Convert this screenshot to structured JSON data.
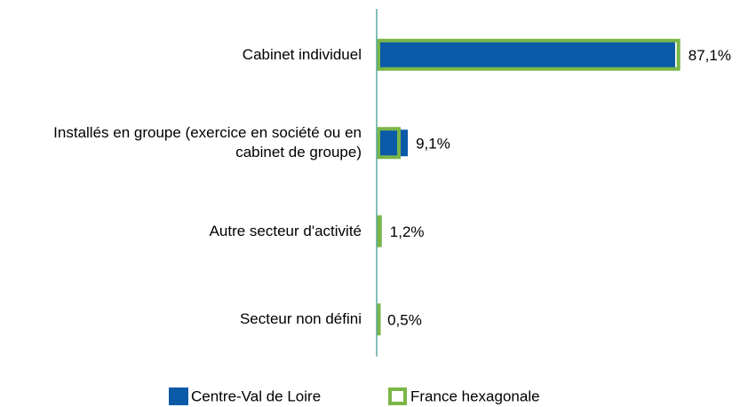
{
  "chart_data": {
    "type": "hbar",
    "categories": [
      "Cabinet individuel",
      "Installés en groupe (exercice en société ou en cabinet de groupe)",
      "Autre secteur d'activité",
      "Secteur non défini"
    ],
    "series": [
      {
        "name": "Centre-Val de Loire",
        "color": "#0b5aa8",
        "values": [
          87.1,
          9.1,
          1.2,
          0.5
        ],
        "value_labels": [
          "87,1%",
          "9,1%",
          "1,2%",
          "0,5%"
        ]
      },
      {
        "name": "France hexagonale",
        "color": "#7ab648",
        "values": [
          88.6,
          7.0,
          1.5,
          0.8
        ]
      }
    ],
    "xlim": [
      0,
      105
    ]
  }
}
